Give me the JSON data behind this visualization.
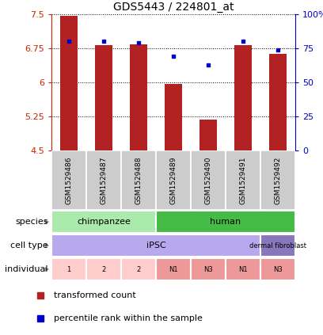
{
  "title": "GDS5443 / 224801_at",
  "samples": [
    "GSM1529486",
    "GSM1529487",
    "GSM1529488",
    "GSM1529489",
    "GSM1529490",
    "GSM1529491",
    "GSM1529492"
  ],
  "transformed_counts": [
    7.46,
    6.82,
    6.84,
    5.97,
    5.18,
    6.82,
    6.63
  ],
  "percentile_ranks": [
    80,
    80,
    79,
    69,
    63,
    80,
    74
  ],
  "ylim": [
    4.5,
    7.5
  ],
  "yticks": [
    4.5,
    5.25,
    6.0,
    6.75,
    7.5
  ],
  "ytick_labels": [
    "4.5",
    "5.25",
    "6",
    "6.75",
    "7.5"
  ],
  "right_yticks": [
    0,
    25,
    50,
    75,
    100
  ],
  "right_ytick_labels": [
    "0",
    "25",
    "50",
    "75",
    "100%"
  ],
  "bar_color": "#b22222",
  "dot_color": "#0000cc",
  "bar_width": 0.5,
  "species": [
    {
      "label": "chimpanzee",
      "start": 0,
      "end": 3,
      "color": "#aaeaaa"
    },
    {
      "label": "human",
      "start": 3,
      "end": 7,
      "color": "#44bb44"
    }
  ],
  "cell_type": [
    {
      "label": "iPSC",
      "start": 0,
      "end": 6,
      "color": "#b8a8ee"
    },
    {
      "label": "dermal fibroblast",
      "start": 6,
      "end": 7,
      "color": "#8878bb"
    }
  ],
  "individual": [
    {
      "label": "1",
      "start": 0,
      "end": 1,
      "color": "#ffcccc"
    },
    {
      "label": "2",
      "start": 1,
      "end": 2,
      "color": "#ffcccc"
    },
    {
      "label": "2",
      "start": 2,
      "end": 3,
      "color": "#ffcccc"
    },
    {
      "label": "N1",
      "start": 3,
      "end": 4,
      "color": "#ee9999"
    },
    {
      "label": "N3",
      "start": 4,
      "end": 5,
      "color": "#ee9999"
    },
    {
      "label": "N1",
      "start": 5,
      "end": 6,
      "color": "#ee9999"
    },
    {
      "label": "N3",
      "start": 6,
      "end": 7,
      "color": "#ee9999"
    }
  ],
  "legend_red_label": "transformed count",
  "legend_blue_label": "percentile rank within the sample",
  "left_axis_color": "#cc2200",
  "right_axis_color": "#0000cc",
  "sample_box_color": "#cccccc",
  "arrow_color": "#888888"
}
